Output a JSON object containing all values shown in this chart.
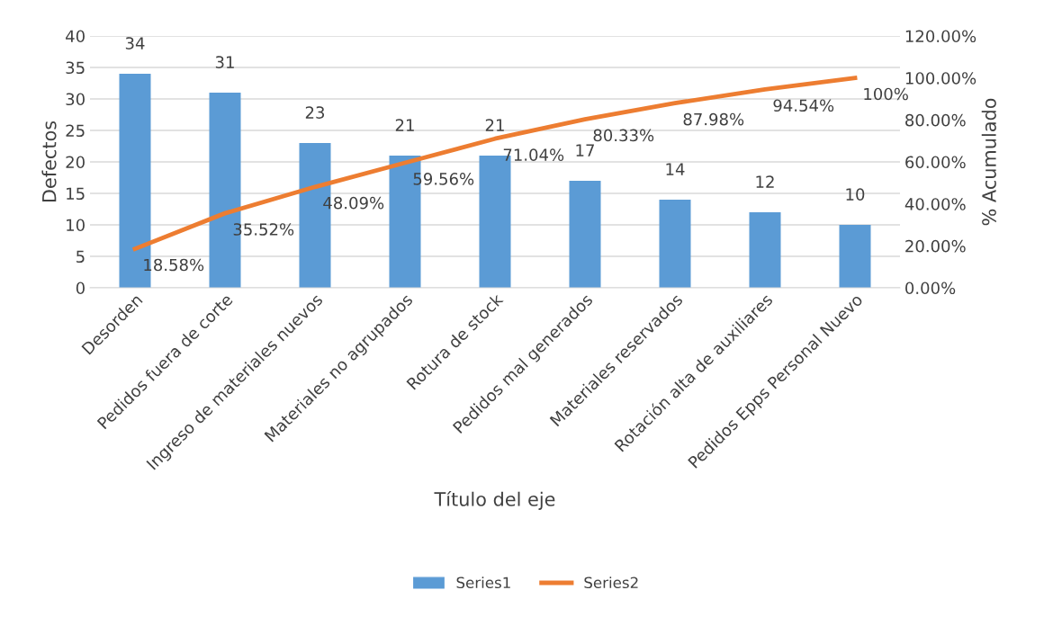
{
  "chart_data": {
    "type": "bar",
    "xlabel": "Título del eje",
    "ylabel": "Defectos",
    "y2label": "% Acumulado",
    "categories": [
      "Desorden",
      "Pedidos fuera de corte",
      "Ingreso de materiales nuevos",
      "Materiales no agrupados",
      "Rotura de stock",
      "Pedidos mal generados",
      "Materiales reservados",
      "Rotación alta de auxiliares",
      "Pedidos Epps Personal Nuevo"
    ],
    "series": [
      {
        "name": "Series1",
        "color": "#5b9bd5",
        "values": [
          34,
          31,
          23,
          21,
          21,
          17,
          14,
          12,
          10
        ],
        "value_labels": [
          "34",
          "31",
          "23",
          "21",
          "21",
          "17",
          "14",
          "12",
          "10"
        ]
      },
      {
        "name": "Series2",
        "type": "line",
        "axis": "y2",
        "color": "#ed7d31",
        "values": [
          18.58,
          35.52,
          48.09,
          59.56,
          71.04,
          80.33,
          87.98,
          94.54,
          100
        ],
        "value_labels": [
          "18.58%",
          "35.52%",
          "48.09%",
          "59.56%",
          "71.04%",
          "80.33%",
          "87.98%",
          "94.54%",
          "100%"
        ]
      }
    ],
    "ylim": [
      0,
      40
    ],
    "yticks": [
      0,
      5,
      10,
      15,
      20,
      25,
      30,
      35,
      40
    ],
    "y2lim": [
      0,
      120
    ],
    "y2ticks": [
      {
        "value": 0,
        "label": "0.00%"
      },
      {
        "value": 20,
        "label": "20.00%"
      },
      {
        "value": 40,
        "label": "40.00%"
      },
      {
        "value": 60,
        "label": "60.00%"
      },
      {
        "value": 80,
        "label": "80.00%"
      },
      {
        "value": 100,
        "label": "100.00%"
      },
      {
        "value": 120,
        "label": "120.00%"
      }
    ],
    "grid": "y",
    "legend": "bottom",
    "marker": "none",
    "line_style": "solid"
  }
}
